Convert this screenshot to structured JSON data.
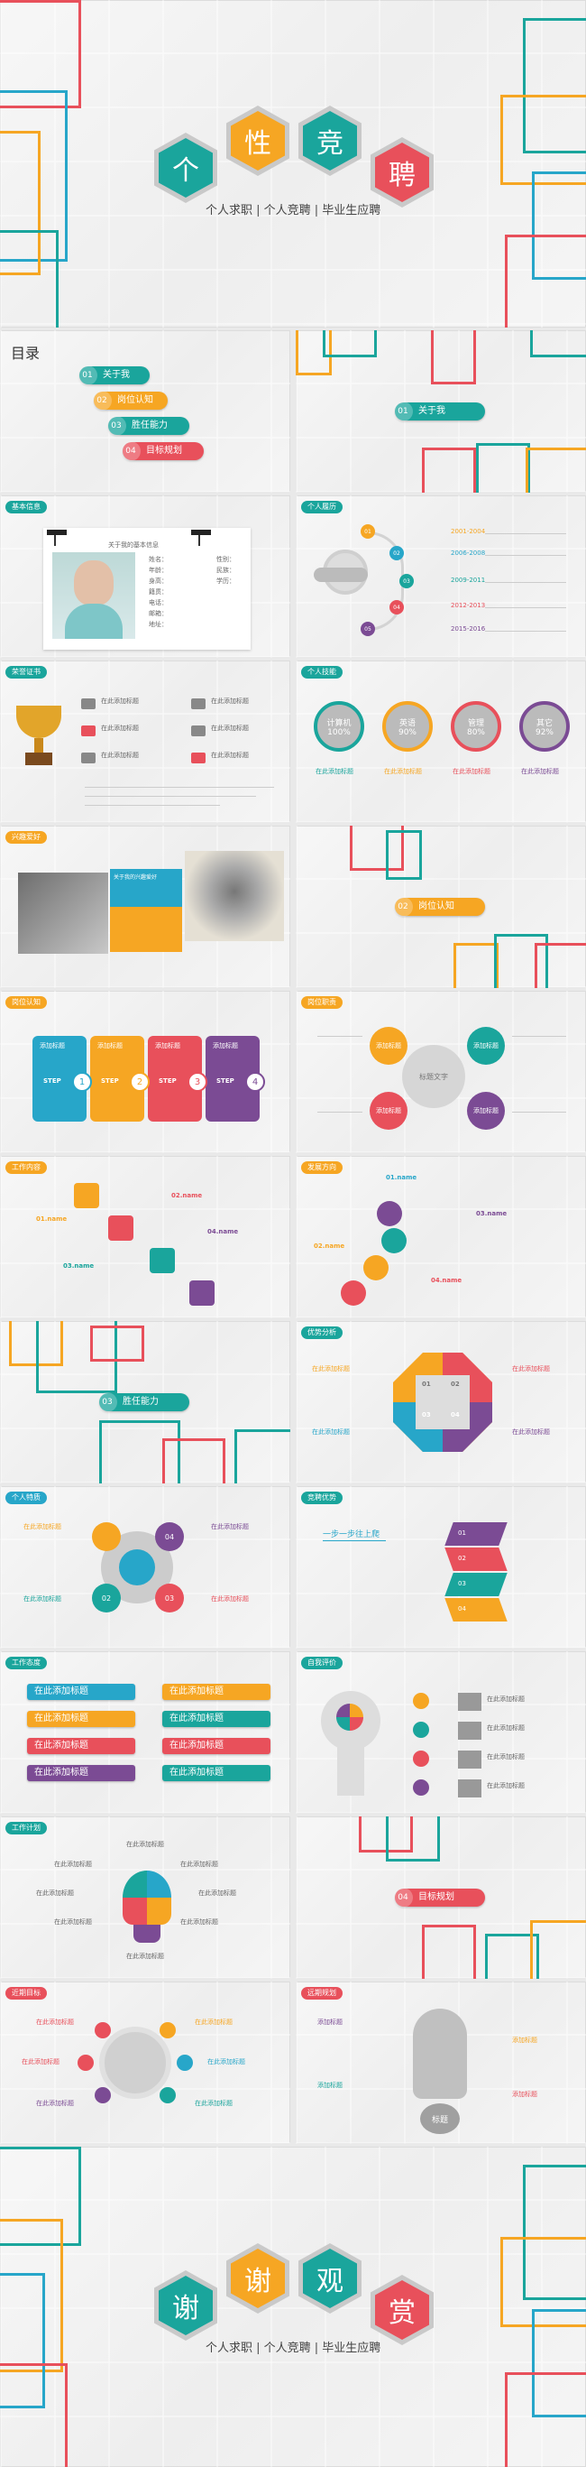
{
  "colors": {
    "teal": "#1aa59c",
    "orange": "#f6a623",
    "red": "#e8505b",
    "purple": "#7b4b94",
    "blue": "#27a6c9",
    "gray": "#9a9a9a"
  },
  "cover": {
    "chars": [
      "个",
      "性",
      "竞",
      "聘"
    ],
    "subtitle": "个人求职 | 个人竞聘 | 毕业生应聘"
  },
  "toc": {
    "title": "目录",
    "items": [
      {
        "num": "01",
        "label": "关于我"
      },
      {
        "num": "02",
        "label": "岗位认知"
      },
      {
        "num": "03",
        "label": "胜任能力"
      },
      {
        "num": "04",
        "label": "目标规划"
      }
    ]
  },
  "section1": {
    "num": "01",
    "label": "关于我"
  },
  "resume": {
    "tag": "基本信息",
    "card_title": "关于我的基本信息",
    "fields": [
      "姓名：",
      "性别：",
      "年龄：",
      "民族：",
      "身高：",
      "学历：",
      "籍贯：",
      "电话：",
      "邮箱：",
      "地址："
    ]
  },
  "timeline": {
    "tag": "个人履历",
    "years": [
      "2001-2004",
      "2006-2008",
      "2009-2011",
      "2012-2013",
      "2015-2016"
    ],
    "nums": [
      "01",
      "02",
      "03",
      "04",
      "05"
    ]
  },
  "award": {
    "tag": "荣誉证书",
    "items": [
      "在此添加标题",
      "在此添加标题",
      "在此添加标题",
      "在此添加标题",
      "在此添加标题",
      "在此添加标题"
    ]
  },
  "skills": {
    "tag": "个人技能",
    "circles": [
      {
        "name": "计算机",
        "pct": "100%"
      },
      {
        "name": "英语",
        "pct": "90%"
      },
      {
        "name": "管理",
        "pct": "80%"
      },
      {
        "name": "其它",
        "pct": "92%"
      }
    ],
    "labels": [
      "在此添加标题",
      "在此添加标题",
      "在此添加标题",
      "在此添加标题"
    ]
  },
  "hobby": {
    "tag": "兴趣爱好",
    "title": "关于我的兴趣爱好"
  },
  "section2": {
    "num": "02",
    "label": "岗位认知"
  },
  "steps": {
    "tag": "岗位认知",
    "items": [
      {
        "t": "添加标题",
        "s": "STEP"
      },
      {
        "t": "添加标题",
        "s": "STEP"
      },
      {
        "t": "添加标题",
        "s": "STEP"
      },
      {
        "t": "添加标题",
        "s": "STEP"
      }
    ]
  },
  "cycle": {
    "tag": "岗位职责",
    "center": "标题文字",
    "items": [
      "添加标题",
      "添加标题",
      "添加标题",
      "添加标题"
    ]
  },
  "stairs": {
    "tag": "工作内容",
    "items": [
      "01.name",
      "02.name",
      "03.name",
      "04.name"
    ]
  },
  "wave": {
    "tag": "发展方向",
    "items": [
      "01.name",
      "02.name",
      "03.name",
      "04.name"
    ]
  },
  "section3": {
    "num": "03",
    "label": "胜任能力"
  },
  "octa": {
    "tag": "优势分析",
    "nums": [
      "01",
      "02",
      "03",
      "04"
    ],
    "items": [
      "在此添加标题",
      "在此添加标题",
      "在此添加标题",
      "在此添加标题"
    ]
  },
  "cross": {
    "tag": "个人特质",
    "items": [
      "在此添加标题",
      "在此添加标题",
      "在此添加标题",
      "在此添加标题"
    ]
  },
  "stairs2": {
    "tag": "竞聘优势",
    "heading": "一步一步往上爬",
    "items": [
      "01",
      "02",
      "03",
      "04"
    ]
  },
  "arrows": {
    "tag": "工作态度",
    "items": [
      "在此添加标题",
      "在此添加标题",
      "在此添加标题",
      "在此添加标题",
      "在此添加标题",
      "在此添加标题",
      "在此添加标题",
      "在此添加标题"
    ]
  },
  "head": {
    "tag": "自我评价",
    "items": [
      "在此添加标题",
      "在此添加标题",
      "在此添加标题",
      "在此添加标题"
    ]
  },
  "bulb": {
    "tag": "工作计划",
    "items": [
      "在此添加标题",
      "在此添加标题",
      "在此添加标题",
      "在此添加标题",
      "在此添加标题",
      "在此添加标题",
      "在此添加标题",
      "在此添加标题"
    ]
  },
  "section4": {
    "num": "04",
    "label": "目标规划"
  },
  "gear": {
    "tag": "近期目标",
    "items": [
      "在此添加标题",
      "在此添加标题",
      "在此添加标题",
      "在此添加标题",
      "在此添加标题",
      "在此添加标题"
    ]
  },
  "warn": {
    "tag": "远期规划",
    "center": "标题",
    "items": [
      "添加标题",
      "添加标题",
      "添加标题",
      "添加标题"
    ]
  },
  "end": {
    "chars": [
      "谢",
      "谢",
      "观",
      "赏"
    ],
    "subtitle": "个人求职 | 个人竞聘 | 毕业生应聘"
  }
}
